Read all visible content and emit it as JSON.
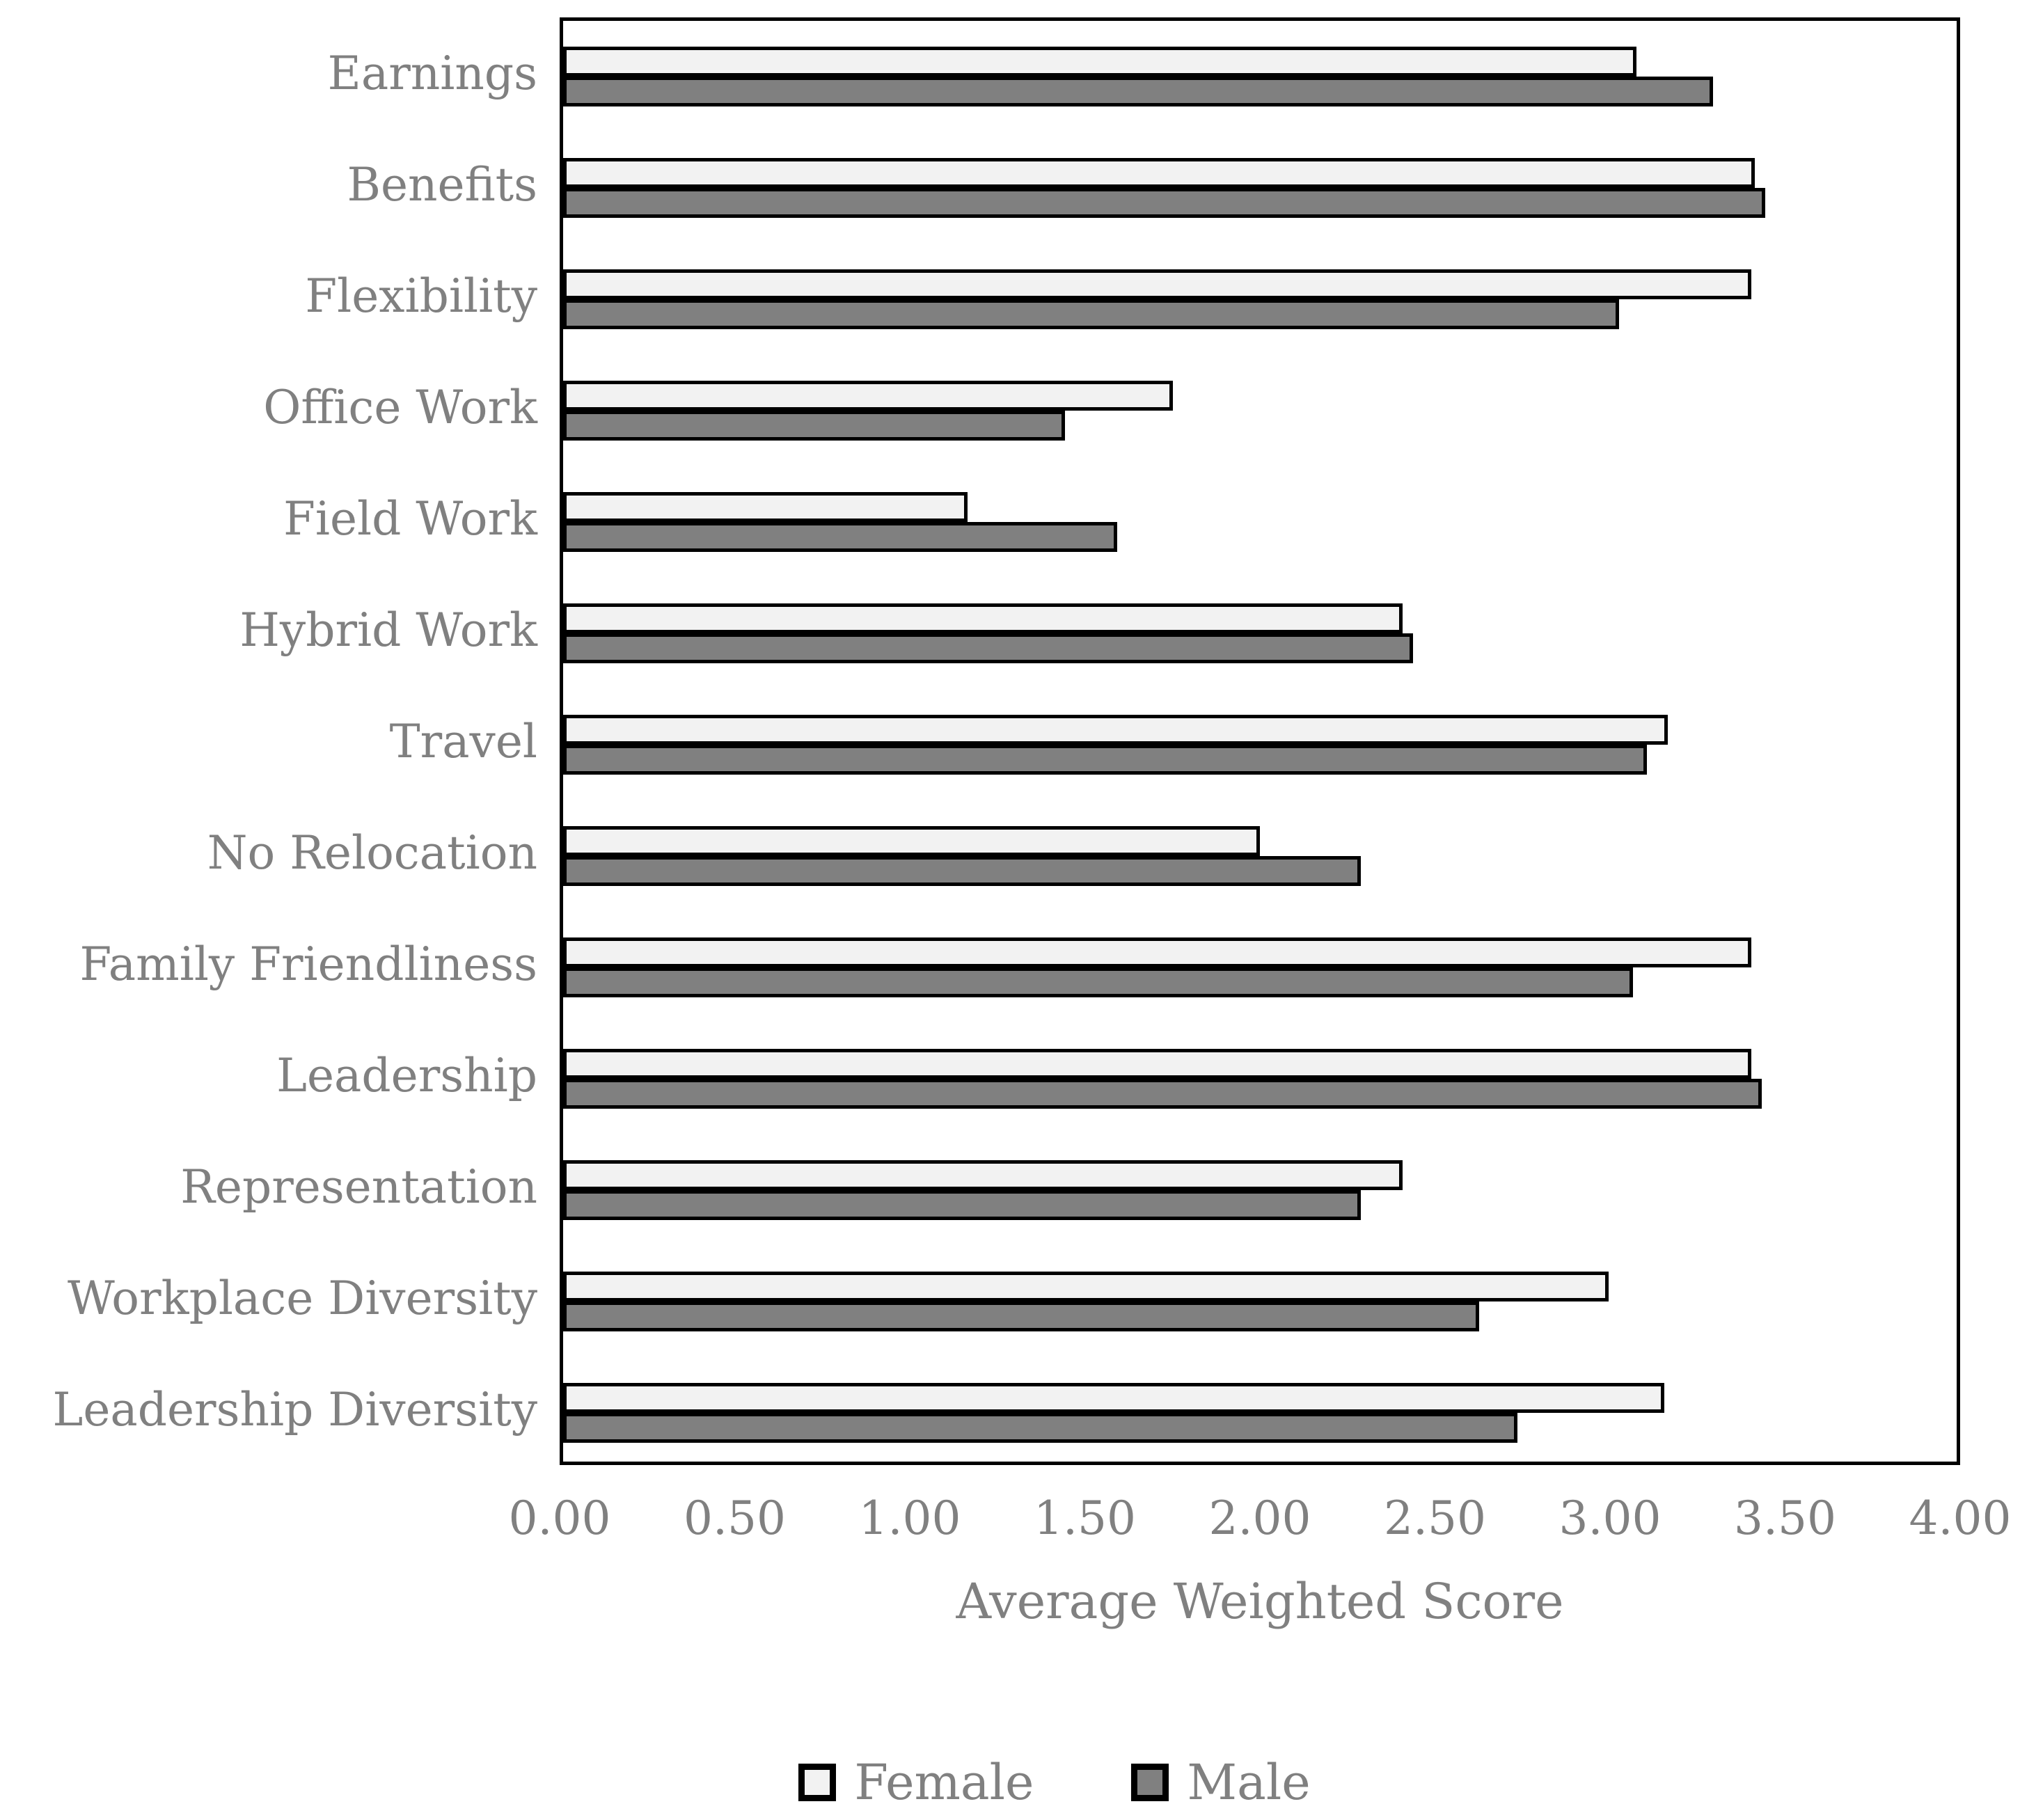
{
  "figure": {
    "background": "#ffffff",
    "frame_color": "#000000",
    "axis_text_color": "#808080"
  },
  "chart_data": {
    "type": "bar",
    "orientation": "horizontal",
    "title": "",
    "xlabel": "Average Weighted Score",
    "ylabel": "",
    "xlim": [
      0,
      4
    ],
    "x_ticks": [
      "0.00",
      "0.50",
      "1.00",
      "1.50",
      "2.00",
      "2.50",
      "3.00",
      "3.50",
      "4.00"
    ],
    "grid": false,
    "legend_position": "bottom",
    "categories": [
      "Earnings",
      "Benefits",
      "Flexibility",
      "Office Work",
      "Field Work",
      "Hybrid Work",
      "Travel",
      "No Relocation",
      "Family Friendliness",
      "Leadership",
      "Representation",
      "Workplace Diversity",
      "Leadership Diversity"
    ],
    "series": [
      {
        "name": "Female",
        "color": "#f2f2f2",
        "border_color": "#000000",
        "values": [
          3.08,
          3.42,
          3.41,
          1.75,
          1.16,
          2.41,
          3.17,
          2.0,
          3.41,
          3.41,
          2.41,
          3.0,
          3.16
        ]
      },
      {
        "name": "Male",
        "color": "#808080",
        "border_color": "#000000",
        "values": [
          3.3,
          3.45,
          3.03,
          1.44,
          1.59,
          2.44,
          3.11,
          2.29,
          3.07,
          3.44,
          2.29,
          2.63,
          2.74
        ]
      }
    ]
  }
}
